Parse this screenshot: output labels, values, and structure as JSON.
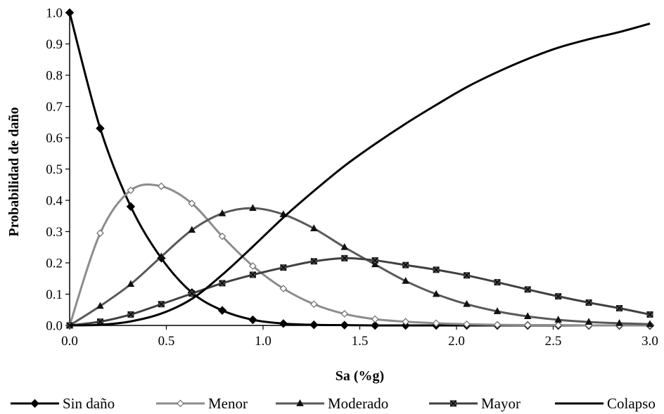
{
  "chart_data": {
    "type": "line",
    "title": "",
    "xlabel": "Sa (%g)",
    "ylabel": "Probabilidad de daño",
    "xlim": [
      0.0,
      3.0
    ],
    "ylim": [
      0.0,
      1.0
    ],
    "x_ticks": [
      "0.0",
      "0.5",
      "1.0",
      "1.5",
      "2.0",
      "2.5",
      "3.0"
    ],
    "y_ticks": [
      "0.0",
      "0.1",
      "0.2",
      "0.3",
      "0.4",
      "0.5",
      "0.6",
      "0.7",
      "0.8",
      "0.9",
      "1.0"
    ],
    "grid": false,
    "legend_position": "bottom",
    "series": [
      {
        "name": "Sin daño",
        "color": "#000000",
        "marker": "diamond-filled",
        "points": [
          [
            0.0,
            1.0
          ],
          [
            0.158,
            0.63
          ],
          [
            0.316,
            0.38
          ],
          [
            0.474,
            0.215
          ],
          [
            0.632,
            0.105
          ],
          [
            0.789,
            0.048
          ],
          [
            0.947,
            0.018
          ],
          [
            1.105,
            0.006
          ],
          [
            1.263,
            0.002
          ],
          [
            1.421,
            0.001
          ],
          [
            1.579,
            0.0
          ],
          [
            1.737,
            0.0
          ],
          [
            1.895,
            0.0
          ],
          [
            2.053,
            0.0
          ],
          [
            2.211,
            0.0
          ],
          [
            2.368,
            0.0
          ],
          [
            2.526,
            0.0
          ],
          [
            2.684,
            0.0
          ],
          [
            2.842,
            0.0
          ],
          [
            3.0,
            0.0
          ]
        ]
      },
      {
        "name": "Menor",
        "color": "#8c8c8c",
        "marker": "diamond-open",
        "points": [
          [
            0.0,
            0.0
          ],
          [
            0.158,
            0.295
          ],
          [
            0.316,
            0.432
          ],
          [
            0.474,
            0.445
          ],
          [
            0.632,
            0.39
          ],
          [
            0.789,
            0.285
          ],
          [
            0.947,
            0.19
          ],
          [
            1.105,
            0.118
          ],
          [
            1.263,
            0.068
          ],
          [
            1.421,
            0.037
          ],
          [
            1.579,
            0.02
          ],
          [
            1.737,
            0.012
          ],
          [
            1.895,
            0.007
          ],
          [
            2.053,
            0.004
          ],
          [
            2.211,
            0.002
          ],
          [
            2.368,
            0.001
          ],
          [
            2.526,
            0.001
          ],
          [
            2.684,
            0.0
          ],
          [
            2.842,
            0.0
          ],
          [
            3.0,
            0.0
          ]
        ]
      },
      {
        "name": "Moderado",
        "color": "#595959",
        "marker": "triangle",
        "points": [
          [
            0.0,
            0.0
          ],
          [
            0.158,
            0.062
          ],
          [
            0.316,
            0.132
          ],
          [
            0.474,
            0.22
          ],
          [
            0.632,
            0.305
          ],
          [
            0.789,
            0.358
          ],
          [
            0.947,
            0.375
          ],
          [
            1.105,
            0.355
          ],
          [
            1.263,
            0.31
          ],
          [
            1.421,
            0.25
          ],
          [
            1.579,
            0.195
          ],
          [
            1.737,
            0.142
          ],
          [
            1.895,
            0.1
          ],
          [
            2.053,
            0.068
          ],
          [
            2.211,
            0.045
          ],
          [
            2.368,
            0.029
          ],
          [
            2.526,
            0.018
          ],
          [
            2.684,
            0.011
          ],
          [
            2.842,
            0.007
          ],
          [
            3.0,
            0.004
          ]
        ]
      },
      {
        "name": "Mayor",
        "color": "#404040",
        "marker": "x-square",
        "points": [
          [
            0.0,
            0.0
          ],
          [
            0.158,
            0.012
          ],
          [
            0.316,
            0.035
          ],
          [
            0.474,
            0.068
          ],
          [
            0.632,
            0.102
          ],
          [
            0.789,
            0.135
          ],
          [
            0.947,
            0.162
          ],
          [
            1.105,
            0.185
          ],
          [
            1.263,
            0.205
          ],
          [
            1.421,
            0.215
          ],
          [
            1.579,
            0.208
          ],
          [
            1.737,
            0.193
          ],
          [
            1.895,
            0.178
          ],
          [
            2.053,
            0.16
          ],
          [
            2.211,
            0.138
          ],
          [
            2.368,
            0.115
          ],
          [
            2.526,
            0.093
          ],
          [
            2.684,
            0.073
          ],
          [
            2.842,
            0.055
          ],
          [
            3.0,
            0.035
          ]
        ]
      },
      {
        "name": "Colapso",
        "color": "#000000",
        "marker": "none",
        "points": [
          [
            0.0,
            0.0
          ],
          [
            0.158,
            0.002
          ],
          [
            0.316,
            0.013
          ],
          [
            0.474,
            0.038
          ],
          [
            0.632,
            0.085
          ],
          [
            0.789,
            0.162
          ],
          [
            0.947,
            0.252
          ],
          [
            1.105,
            0.345
          ],
          [
            1.263,
            0.43
          ],
          [
            1.421,
            0.51
          ],
          [
            1.579,
            0.58
          ],
          [
            1.737,
            0.645
          ],
          [
            1.895,
            0.705
          ],
          [
            2.053,
            0.762
          ],
          [
            2.211,
            0.81
          ],
          [
            2.368,
            0.852
          ],
          [
            2.526,
            0.888
          ],
          [
            2.684,
            0.915
          ],
          [
            2.842,
            0.938
          ],
          [
            3.0,
            0.965
          ]
        ]
      }
    ]
  }
}
